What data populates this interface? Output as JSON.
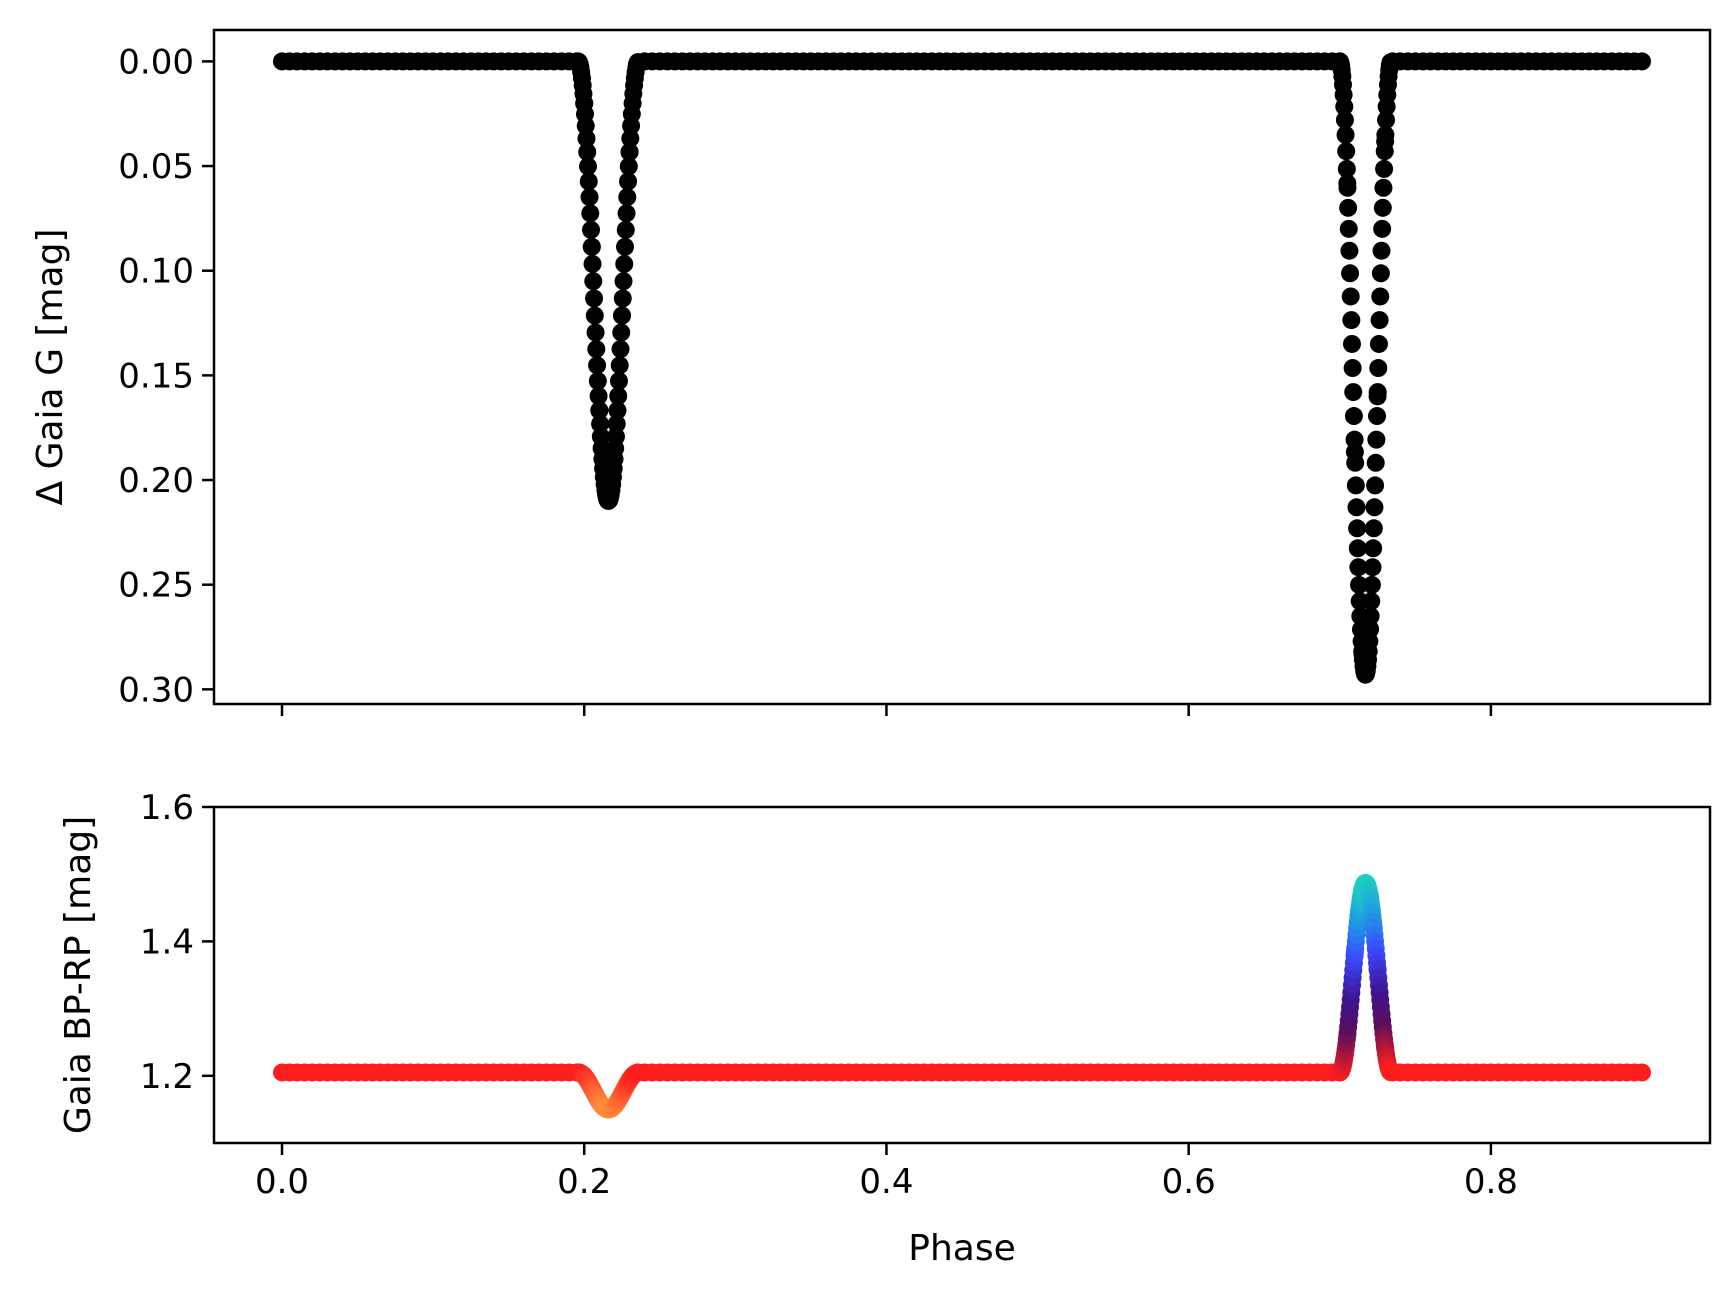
{
  "chart_data": [
    {
      "type": "scatter",
      "panel": "top",
      "title": "",
      "xlabel": "",
      "ylabel": "Δ Gaia G [mag]",
      "xlim": [
        -0.045,
        0.945
      ],
      "ylim": [
        0.307,
        -0.015
      ],
      "y_inverted": true,
      "xticks": [
        0.0,
        0.2,
        0.4,
        0.6,
        0.8
      ],
      "yticks": [
        0.0,
        0.05,
        0.1,
        0.15,
        0.2,
        0.25,
        0.3
      ],
      "ytick_labels": [
        "0.00",
        "0.05",
        "0.10",
        "0.15",
        "0.20",
        "0.25",
        "0.30"
      ],
      "xtick_labels_shown": false,
      "marker_color": "#000000",
      "grid": false,
      "phase_range": [
        0.0,
        0.9
      ],
      "sample_step": 0.005,
      "eclipses": [
        {
          "label": "eclipse-1",
          "center": 0.216,
          "depth": 0.21,
          "half_width": 0.02
        },
        {
          "label": "eclipse-2",
          "center": 0.717,
          "depth": 0.293,
          "half_width": 0.017
        }
      ],
      "baseline": 0.0
    },
    {
      "type": "scatter",
      "panel": "bottom",
      "title": "",
      "xlabel": "Phase",
      "ylabel": "Gaia BP-RP [mag]",
      "xlim": [
        -0.045,
        0.945
      ],
      "ylim": [
        1.1,
        1.6
      ],
      "xticks": [
        0.0,
        0.2,
        0.4,
        0.6,
        0.8
      ],
      "xtick_labels": [
        "0.0",
        "0.2",
        "0.4",
        "0.6",
        "0.8"
      ],
      "yticks": [
        1.2,
        1.4,
        1.6
      ],
      "ytick_labels": [
        "1.2",
        "1.4",
        "1.6"
      ],
      "grid": false,
      "phase_range": [
        0.0,
        0.9
      ],
      "sample_step": 0.005,
      "baseline": 1.205,
      "features": [
        {
          "label": "dip",
          "center": 0.216,
          "extreme": 1.15,
          "half_width": 0.02
        },
        {
          "label": "peak",
          "center": 0.717,
          "extreme": 1.487,
          "half_width": 0.017
        }
      ],
      "color_scale": [
        {
          "value": 1.15,
          "color": "#ff8c3c"
        },
        {
          "value": 1.205,
          "color": "#ff1e1e"
        },
        {
          "value": 1.27,
          "color": "#5a0f5a"
        },
        {
          "value": 1.32,
          "color": "#3c1490"
        },
        {
          "value": 1.38,
          "color": "#3c46ff"
        },
        {
          "value": 1.43,
          "color": "#1e96e6"
        },
        {
          "value": 1.49,
          "color": "#1ed2be"
        }
      ]
    }
  ]
}
